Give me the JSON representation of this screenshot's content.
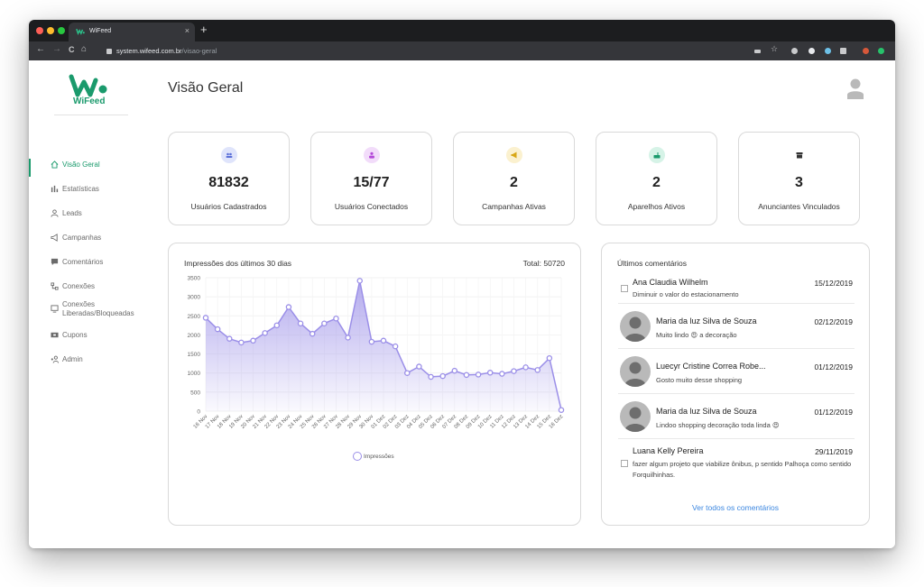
{
  "browser": {
    "tab_title": "WiFeed",
    "tab_close": "×",
    "new_tab": "+",
    "url_host": "system.wifeed.com.br",
    "url_path": "/visao-geral",
    "back": "←",
    "forward": "→",
    "reload": "C",
    "home": "⌂"
  },
  "brand": {
    "name": "WiFeed",
    "color": "#1a9a6c"
  },
  "sidebar": {
    "items": [
      {
        "label": "Visão Geral",
        "icon": "home-icon"
      },
      {
        "label": "Estatísticas",
        "icon": "bar-chart-icon"
      },
      {
        "label": "Leads",
        "icon": "user-icon"
      },
      {
        "label": "Campanhas",
        "icon": "megaphone-icon"
      },
      {
        "label": "Comentários",
        "icon": "comment-icon"
      },
      {
        "label": "Conexões",
        "icon": "network-icon"
      },
      {
        "label": "Conexões Liberadas/Bloqueadas",
        "icon": "monitor-icon"
      },
      {
        "label": "Cupons",
        "icon": "ticket-icon"
      },
      {
        "label": "Admin",
        "icon": "admin-icon"
      }
    ]
  },
  "page": {
    "title": "Visão Geral"
  },
  "stats": [
    {
      "value": "81832",
      "label": "Usuários Cadastrados",
      "icon": "users-icon",
      "color": "#5a6fd8",
      "bg": "#dfe4fb"
    },
    {
      "value": "15/77",
      "label": "Usuários Conectados",
      "icon": "connected-user-icon",
      "color": "#b44ad8",
      "bg": "#f2dcfa"
    },
    {
      "value": "2",
      "label": "Campanhas Ativas",
      "icon": "megaphone-icon",
      "color": "#d8a716",
      "bg": "#fbf1cf"
    },
    {
      "value": "2",
      "label": "Aparelhos Ativos",
      "icon": "router-icon",
      "color": "#1a9a6c",
      "bg": "#d6f3e7"
    },
    {
      "value": "3",
      "label": "Anunciantes Vinculados",
      "icon": "store-icon",
      "color": "#333333",
      "bg": "#ffffff"
    }
  ],
  "chart_panel": {
    "title": "Impressões dos últimos 30 dias",
    "total": "Total: 50720"
  },
  "chart_data": {
    "type": "area",
    "title": "Impressões dos últimos 30 dias",
    "xlabel": "",
    "ylabel": "",
    "ylim": [
      0,
      3500
    ],
    "yticks": [
      0,
      500,
      1000,
      1500,
      2000,
      2500,
      3000,
      3500
    ],
    "grid": true,
    "legend_position": "bottom",
    "categories": [
      "16 Nov",
      "17 Nov",
      "18 Nov",
      "19 Nov",
      "20 Nov",
      "21 Nov",
      "22 Nov",
      "23 Nov",
      "24 Nov",
      "25 Nov",
      "26 Nov",
      "27 Nov",
      "28 Nov",
      "29 Nov",
      "30 Nov",
      "01 Dez",
      "02 Dez",
      "03 Dez",
      "04 Dez",
      "05 Dez",
      "06 Dez",
      "07 Dez",
      "08 Dez",
      "09 Dez",
      "10 Dez",
      "11 Dez",
      "12 Dez",
      "13 Dez",
      "14 Dez",
      "15 Dez",
      "16 Dez"
    ],
    "series": [
      {
        "name": "Impressões",
        "color": "#9b8fe8",
        "values": [
          2450,
          2150,
          1900,
          1800,
          1850,
          2050,
          2250,
          2730,
          2300,
          2030,
          2300,
          2430,
          1930,
          3420,
          1820,
          1850,
          1700,
          1000,
          1170,
          900,
          920,
          1060,
          950,
          960,
          1010,
          980,
          1050,
          1150,
          1080,
          1390,
          30
        ]
      }
    ]
  },
  "comments": {
    "title": "Últimos comentários",
    "see_all": "Ver todos os comentários",
    "items": [
      {
        "name": "Ana Claudia Wilhelm",
        "date": "15/12/2019",
        "text": "Diminuir o valor do estacionamento",
        "avatar": "broken-image-icon"
      },
      {
        "name": "Maria da luz Silva de Souza",
        "date": "02/12/2019",
        "text": "Muito lindo 😍  a decoração",
        "avatar": "default-avatar-icon"
      },
      {
        "name": "Luecyr Cristine Correa Robe...",
        "date": "01/12/2019",
        "text": "Gosto muito desse shopping",
        "avatar": "default-avatar-icon"
      },
      {
        "name": "Maria da luz Silva de Souza",
        "date": "01/12/2019",
        "text": "Lindoo shopping decoração toda linda 😍",
        "avatar": "default-avatar-icon"
      },
      {
        "name": "Luana Kelly Pereira",
        "date": "29/11/2019",
        "text": "fazer algum projeto que viabilize ônibus, p sentido Palhoça como sentido Forquilhinhas.",
        "avatar": "broken-image-icon"
      }
    ]
  }
}
